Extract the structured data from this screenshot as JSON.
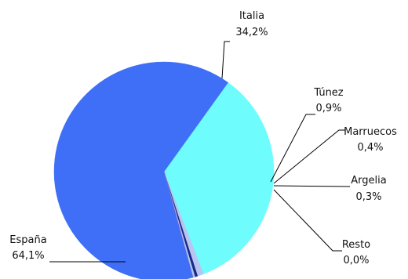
{
  "chart_data": {
    "type": "pie",
    "title": "",
    "slices": [
      {
        "name": "España",
        "value_label": "64,1%",
        "value": 64.1,
        "color": "#3f6ff7"
      },
      {
        "name": "Italia",
        "value_label": "34,2%",
        "value": 34.2,
        "color": "#6ffcfd"
      },
      {
        "name": "Túnez",
        "value_label": "0,9%",
        "value": 0.9,
        "color": "#b8c5f0"
      },
      {
        "name": "Marruecos",
        "value_label": "0,4%",
        "value": 0.4,
        "color": "#1a2a8a"
      },
      {
        "name": "Argelia",
        "value_label": "0,3%",
        "value": 0.3,
        "color": "#a8ccee"
      },
      {
        "name": "Resto",
        "value_label": "0,0%",
        "value": 0.0,
        "color": "#f06fa8"
      }
    ]
  }
}
